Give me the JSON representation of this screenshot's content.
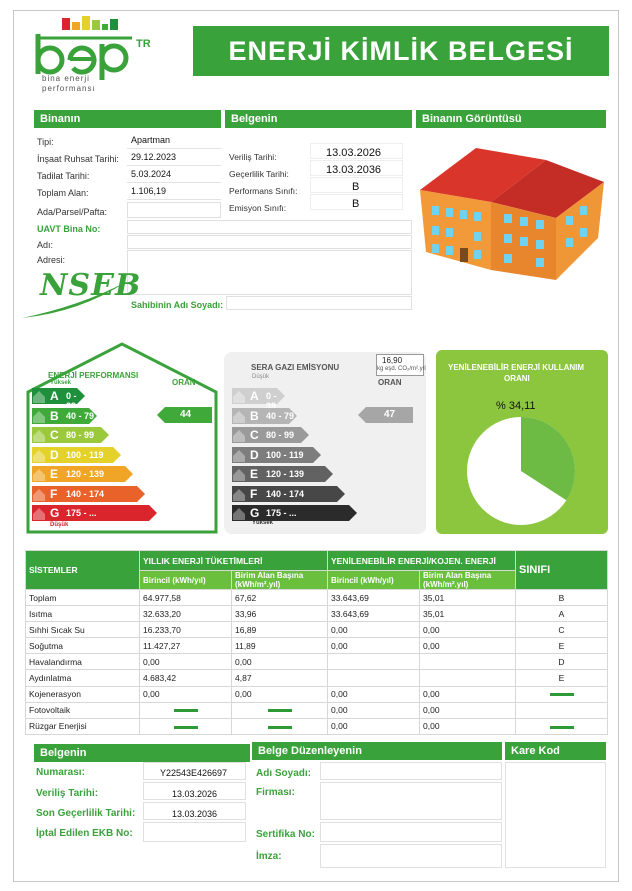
{
  "logo": {
    "main": "bep",
    "tr": "TR",
    "sub1": "bina enerji",
    "sub2": "performansı"
  },
  "title": "ENERJİ KİMLİK BELGESİ",
  "binanin": {
    "header": "Binanın",
    "fields": [
      {
        "label": "Tipi:",
        "value": "Apartman"
      },
      {
        "label": "İnşaat Ruhsat Tarihi:",
        "value": "29.12.2023"
      },
      {
        "label": "Tadilat Tarihi:",
        "value": "5.03.2024"
      },
      {
        "label": "Toplam Alan:",
        "value": "1.106,19"
      },
      {
        "label": "Ada/Parsel/Pafta:",
        "value": ""
      }
    ],
    "uavt_label": "UAVT Bina No:",
    "adi_label": "Adı:",
    "adresi_label": "Adresi:",
    "sahibi_label": "Sahibinin Adı Soyadı:"
  },
  "belgenin_top": {
    "header": "Belgenin",
    "fields": [
      {
        "label": "Veriliş Tarihi:",
        "value": "13.03.2026"
      },
      {
        "label": "Geçerlilik Tarihi:",
        "value": "13.03.2036"
      },
      {
        "label": "Performans Sınıfı:",
        "value": "B"
      },
      {
        "label": "Emisyon Sınıfı:",
        "value": "B"
      }
    ]
  },
  "goruntusu_header": "Binanın Görüntüsü",
  "nseb": "NSEB",
  "energy": {
    "title": "ENERJİ PERFORMANSI",
    "top": "Yüksek",
    "bottom": "Düşük",
    "oran_label": "ORAN",
    "oran": "44",
    "bars": [
      {
        "letter": "A",
        "range": "0 - 39",
        "color": "#1e8f3a"
      },
      {
        "letter": "B",
        "range": "40 - 79",
        "color": "#3faa3a"
      },
      {
        "letter": "C",
        "range": "80 - 99",
        "color": "#9bc93c"
      },
      {
        "letter": "D",
        "range": "100 - 119",
        "color": "#e4d22a"
      },
      {
        "letter": "E",
        "range": "120 - 139",
        "color": "#f0a526"
      },
      {
        "letter": "F",
        "range": "140 - 174",
        "color": "#e8622a"
      },
      {
        "letter": "G",
        "range": "175 - ...",
        "color": "#d9252b"
      }
    ]
  },
  "emission": {
    "title": "SERA GAZI EMİSYONU",
    "top": "Düşük",
    "bottom": "Yüksek",
    "oran_label": "ORAN",
    "oran": "47",
    "box_value": "16,90",
    "box_unit": "kg eşd. CO₂/m².yıl",
    "bars": [
      {
        "letter": "A",
        "range": "0 - 39",
        "color": "#cfcfcf"
      },
      {
        "letter": "B",
        "range": "40 - 79",
        "color": "#b5b5b5"
      },
      {
        "letter": "C",
        "range": "80 - 99",
        "color": "#9a9a9a"
      },
      {
        "letter": "D",
        "range": "100 - 119",
        "color": "#7d7d7d"
      },
      {
        "letter": "E",
        "range": "120 - 139",
        "color": "#626262"
      },
      {
        "letter": "F",
        "range": "140 - 174",
        "color": "#474747"
      },
      {
        "letter": "G",
        "range": "175 - ...",
        "color": "#2b2b2b"
      }
    ]
  },
  "renewable": {
    "title_line1": "YENİLENEBİLİR ENERJİ KULLANIM",
    "title_line2": "ORANI",
    "percent_label": "% 34,11",
    "fraction": 0.3411
  },
  "systems": {
    "h_sistemler": "SİSTEMLER",
    "h_yillik": "YILLIK ENERJİ TÜKETİMLERİ",
    "h_yenilenebilir": "YENİLENEBİLİR ENERJİ/KOJEN. ENERJİ",
    "h_sinifi": "SINIFI",
    "sub_birincil1": "Birincil (kWh/yıl)",
    "sub_birim1": "Birim Alan Başına (kWh/m².yıl)",
    "sub_birincil2": "Birincil (kWh/yıl)",
    "sub_birim2": "Birim Alan Başına (kWh/m².yıl)",
    "rows": [
      {
        "name": "Toplam",
        "c1": "64.977,58",
        "c2": "67,62",
        "c3": "33.643,69",
        "c4": "35,01",
        "c5": "B"
      },
      {
        "name": "Isıtma",
        "c1": "32.633,20",
        "c2": "33,96",
        "c3": "33.643,69",
        "c4": "35,01",
        "c5": "A"
      },
      {
        "name": "Sıhhi Sıcak Su",
        "c1": "16.233,70",
        "c2": "16,89",
        "c3": "0,00",
        "c4": "0,00",
        "c5": "C"
      },
      {
        "name": "Soğutma",
        "c1": "11.427,27",
        "c2": "11,89",
        "c3": "0,00",
        "c4": "0,00",
        "c5": "E"
      },
      {
        "name": "Havalandırma",
        "c1": "0,00",
        "c2": "0,00",
        "c3": "",
        "c4": "",
        "c5": "D"
      },
      {
        "name": "Aydınlatma",
        "c1": "4.683,42",
        "c2": "4,87",
        "c3": "",
        "c4": "",
        "c5": "E"
      },
      {
        "name": "Kojenerasyon",
        "c1": "0,00",
        "c2": "0,00",
        "c3": "0,00",
        "c4": "0,00",
        "c5": "-"
      },
      {
        "name": "Fotovoltaik",
        "c1": "-",
        "c2": "-",
        "c3": "0,00",
        "c4": "0,00",
        "c5": ""
      },
      {
        "name": "Rüzgar Enerjisi",
        "c1": "-",
        "c2": "-",
        "c3": "0,00",
        "c4": "0,00",
        "c5": "-"
      }
    ]
  },
  "belgenin_bottom": {
    "header": "Belgenin",
    "fields": [
      {
        "label": "Numarası:",
        "value": "Y22543E426697"
      },
      {
        "label": "Veriliş Tarihi:",
        "value": "13.03.2026"
      },
      {
        "label": "Son Geçerlilik Tarihi:",
        "value": "13.03.2036"
      },
      {
        "label": "İptal Edilen EKB No:",
        "value": ""
      }
    ]
  },
  "duzenleyen": {
    "header": "Belge Düzenleyenin",
    "adi": "Adı Soyadı:",
    "firmasi": "Firması:",
    "sertifika": "Sertifika No:",
    "imza": "İmza:"
  },
  "karekod": {
    "header": "Kare Kod"
  }
}
